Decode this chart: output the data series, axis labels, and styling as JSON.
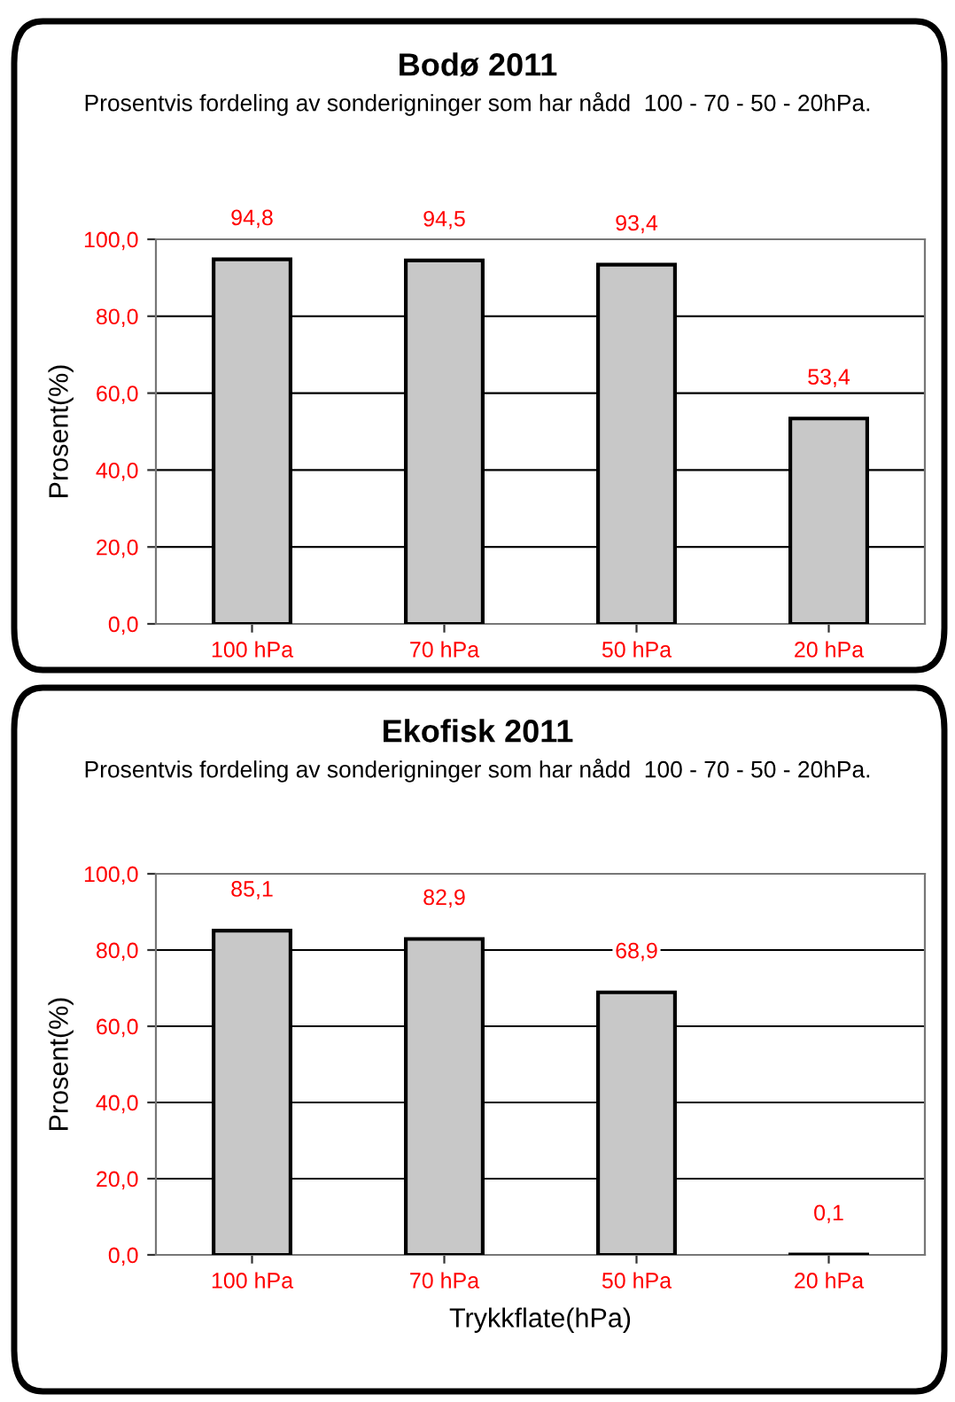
{
  "chart_data": [
    {
      "type": "bar",
      "title": "Bodø 2011",
      "subtitle": "Prosentvis fordeling av sonderigninger som har nådd  100 - 70 - 50 - 20hPa.",
      "ylabel": "Prosent(%)",
      "categories": [
        "100 hPa",
        "70 hPa",
        "50 hPa",
        "20 hPa"
      ],
      "values": [
        94.8,
        94.5,
        93.4,
        53.4
      ],
      "value_labels": [
        "94,8",
        "94,5",
        "93,4",
        "53,4"
      ],
      "color": "#c8c8c8",
      "ylim": [
        0,
        100
      ],
      "yticks": [
        {
          "value": 0,
          "label": "0,0"
        },
        {
          "value": 20,
          "label": "20,0"
        },
        {
          "value": 40,
          "label": "40,0"
        },
        {
          "value": 60,
          "label": "60,0"
        },
        {
          "value": 80,
          "label": "80,0"
        },
        {
          "value": 100,
          "label": "100,0"
        }
      ],
      "grid": "y"
    },
    {
      "type": "bar",
      "title": "Ekofisk 2011",
      "subtitle": "Prosentvis fordeling av sonderigninger som har nådd  100 - 70 - 50 - 20hPa.",
      "ylabel": "Prosent(%)",
      "xlabel": "Trykkflate(hPa)",
      "categories": [
        "100 hPa",
        "70 hPa",
        "50 hPa",
        "20 hPa"
      ],
      "values": [
        85.1,
        82.9,
        68.9,
        0.1
      ],
      "value_labels": [
        "85,1",
        "82,9",
        "68,9",
        "0,1"
      ],
      "color": "#c8c8c8",
      "ylim": [
        0,
        100
      ],
      "yticks": [
        {
          "value": 0,
          "label": "0,0"
        },
        {
          "value": 20,
          "label": "20,0"
        },
        {
          "value": 40,
          "label": "40,0"
        },
        {
          "value": 60,
          "label": "60,0"
        },
        {
          "value": 80,
          "label": "80,0"
        },
        {
          "value": 100,
          "label": "100,0"
        }
      ],
      "grid": "y"
    }
  ]
}
